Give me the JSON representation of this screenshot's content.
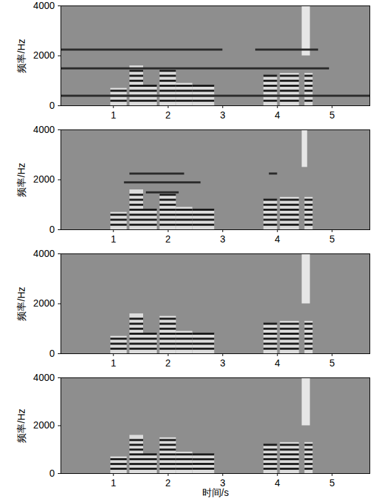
{
  "chart_data": [
    {
      "type": "spectrogram",
      "y_label": "频率/Hz",
      "xlim": [
        0.04,
        5.69
      ],
      "ylim": [
        0,
        4000
      ],
      "xticks": [
        1,
        2,
        3,
        4,
        5
      ],
      "yticks": [
        0,
        2000,
        4000
      ],
      "harmonics": [
        200,
        400,
        600,
        800,
        1000,
        1200,
        1400
      ],
      "segments": [
        {
          "start": 0.95,
          "end": 1.25,
          "top": 700
        },
        {
          "start": 1.3,
          "end": 1.55,
          "top": 1600
        },
        {
          "start": 1.55,
          "end": 1.8,
          "top": 800
        },
        {
          "start": 1.85,
          "end": 2.15,
          "top": 1500
        },
        {
          "start": 2.15,
          "end": 2.45,
          "top": 900
        },
        {
          "start": 2.45,
          "end": 2.85,
          "top": 800
        },
        {
          "start": 3.75,
          "end": 4.0,
          "top": 1200
        },
        {
          "start": 4.05,
          "end": 4.4,
          "top": 1300
        },
        {
          "start": 4.5,
          "end": 4.65,
          "top": 1300
        }
      ],
      "tones": [
        {
          "freq": 2250,
          "start": 0.04,
          "end": 3.0
        },
        {
          "freq": 2250,
          "start": 3.6,
          "end": 4.75
        },
        {
          "freq": 1500,
          "start": 0.04,
          "end": 4.95
        },
        {
          "freq": 400,
          "start": 0.04,
          "end": 5.69
        }
      ],
      "transients": [
        {
          "start": 4.45,
          "end": 4.6,
          "low": 2000,
          "high": 4000
        }
      ]
    },
    {
      "type": "spectrogram",
      "y_label": "频率/Hz",
      "xlim": [
        0.04,
        5.69
      ],
      "ylim": [
        0,
        4000
      ],
      "xticks": [
        1,
        2,
        3,
        4,
        5
      ],
      "yticks": [
        0,
        2000,
        4000
      ],
      "harmonics": [
        200,
        400,
        600,
        800,
        1000,
        1200,
        1400
      ],
      "segments": [
        {
          "start": 0.95,
          "end": 1.25,
          "top": 700
        },
        {
          "start": 1.3,
          "end": 1.55,
          "top": 1600
        },
        {
          "start": 1.55,
          "end": 1.8,
          "top": 800
        },
        {
          "start": 1.85,
          "end": 2.15,
          "top": 1500
        },
        {
          "start": 2.15,
          "end": 2.45,
          "top": 900
        },
        {
          "start": 2.45,
          "end": 2.85,
          "top": 800
        },
        {
          "start": 3.75,
          "end": 4.0,
          "top": 1200
        },
        {
          "start": 4.05,
          "end": 4.4,
          "top": 1300
        },
        {
          "start": 4.5,
          "end": 4.65,
          "top": 1300
        }
      ],
      "tones": [
        {
          "freq": 2250,
          "start": 1.3,
          "end": 2.3
        },
        {
          "freq": 2250,
          "start": 3.85,
          "end": 4.0
        },
        {
          "freq": 1900,
          "start": 1.2,
          "end": 2.6
        },
        {
          "freq": 1500,
          "start": 1.6,
          "end": 2.2
        }
      ],
      "transients": [
        {
          "start": 4.45,
          "end": 4.55,
          "low": 2500,
          "high": 4000
        }
      ]
    },
    {
      "type": "spectrogram",
      "y_label": "频率/Hz",
      "xlim": [
        0.04,
        5.69
      ],
      "ylim": [
        0,
        4000
      ],
      "xticks": [
        1,
        2,
        3,
        4,
        5
      ],
      "yticks": [
        0,
        2000,
        4000
      ],
      "harmonics": [
        200,
        400,
        600,
        800,
        1000,
        1200,
        1400
      ],
      "segments": [
        {
          "start": 0.95,
          "end": 1.25,
          "top": 700
        },
        {
          "start": 1.3,
          "end": 1.55,
          "top": 1600
        },
        {
          "start": 1.55,
          "end": 1.8,
          "top": 800
        },
        {
          "start": 1.85,
          "end": 2.15,
          "top": 1500
        },
        {
          "start": 2.15,
          "end": 2.45,
          "top": 900
        },
        {
          "start": 2.45,
          "end": 2.85,
          "top": 800
        },
        {
          "start": 3.75,
          "end": 4.0,
          "top": 1200
        },
        {
          "start": 4.05,
          "end": 4.4,
          "top": 1300
        },
        {
          "start": 4.5,
          "end": 4.65,
          "top": 1300
        }
      ],
      "tones": [],
      "transients": [
        {
          "start": 4.45,
          "end": 4.6,
          "low": 2000,
          "high": 4000
        }
      ]
    },
    {
      "type": "spectrogram",
      "y_label": "频率/Hz",
      "x_label": "时间/s",
      "xlim": [
        0.04,
        5.69
      ],
      "ylim": [
        0,
        4000
      ],
      "xticks": [
        1,
        2,
        3,
        4,
        5
      ],
      "yticks": [
        0,
        2000,
        4000
      ],
      "harmonics": [
        200,
        400,
        600,
        800,
        1000,
        1200,
        1400
      ],
      "segments": [
        {
          "start": 0.95,
          "end": 1.25,
          "top": 700
        },
        {
          "start": 1.3,
          "end": 1.55,
          "top": 1600
        },
        {
          "start": 1.55,
          "end": 1.8,
          "top": 800
        },
        {
          "start": 1.85,
          "end": 2.15,
          "top": 1500
        },
        {
          "start": 2.15,
          "end": 2.45,
          "top": 900
        },
        {
          "start": 2.45,
          "end": 2.85,
          "top": 800
        },
        {
          "start": 3.75,
          "end": 4.0,
          "top": 1200
        },
        {
          "start": 4.05,
          "end": 4.4,
          "top": 1300
        },
        {
          "start": 4.5,
          "end": 4.65,
          "top": 1300
        }
      ],
      "tones": [],
      "transients": [
        {
          "start": 4.45,
          "end": 4.6,
          "low": 2000,
          "high": 4000
        }
      ]
    }
  ]
}
